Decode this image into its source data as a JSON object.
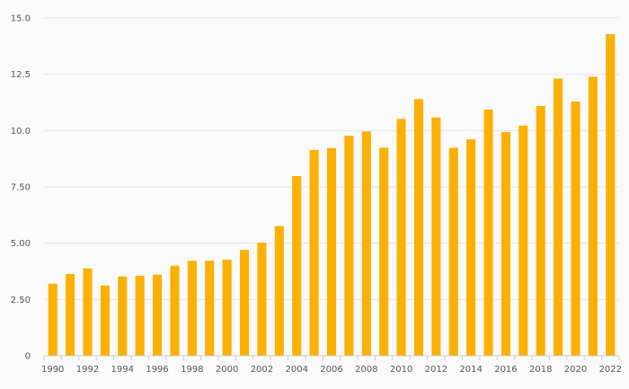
{
  "chart_data": {
    "type": "bar",
    "title": "",
    "xlabel": "",
    "ylabel": "",
    "categories": [
      "1990",
      "1991",
      "1992",
      "1993",
      "1994",
      "1995",
      "1996",
      "1997",
      "1998",
      "1999",
      "2000",
      "2001",
      "2002",
      "2003",
      "2004",
      "2005",
      "2006",
      "2007",
      "2008",
      "2009",
      "2010",
      "2011",
      "2012",
      "2013",
      "2014",
      "2015",
      "2016",
      "2017",
      "2018",
      "2019",
      "2020",
      "2021",
      "2022"
    ],
    "values": [
      3.2,
      3.63,
      3.88,
      3.12,
      3.52,
      3.55,
      3.6,
      4.0,
      4.22,
      4.22,
      4.27,
      4.7,
      5.02,
      5.76,
      7.98,
      9.14,
      9.22,
      9.77,
      9.96,
      9.24,
      10.52,
      11.4,
      10.58,
      9.24,
      9.61,
      10.93,
      9.93,
      10.22,
      11.09,
      12.31,
      11.29,
      12.39,
      14.28
    ],
    "x_tick_labels": [
      "1990",
      "1992",
      "1994",
      "1996",
      "1998",
      "2000",
      "2002",
      "2004",
      "2006",
      "2008",
      "2010",
      "2012",
      "2014",
      "2016",
      "2018",
      "2020",
      "2022"
    ],
    "y_ticks": [
      {
        "value": 0,
        "label": "0"
      },
      {
        "value": 2.5,
        "label": "2.50"
      },
      {
        "value": 5,
        "label": "5.00"
      },
      {
        "value": 7.5,
        "label": "7.50"
      },
      {
        "value": 10,
        "label": "10.0"
      },
      {
        "value": 12.5,
        "label": "12.5"
      },
      {
        "value": 15,
        "label": "15.0"
      }
    ],
    "ylim": [
      0,
      15
    ],
    "grid": true,
    "legend": "none",
    "colors": {
      "bar": "#fbb003",
      "background": "#fafafa",
      "grid": "#e6e6e6",
      "axis": "#cccccc"
    }
  }
}
